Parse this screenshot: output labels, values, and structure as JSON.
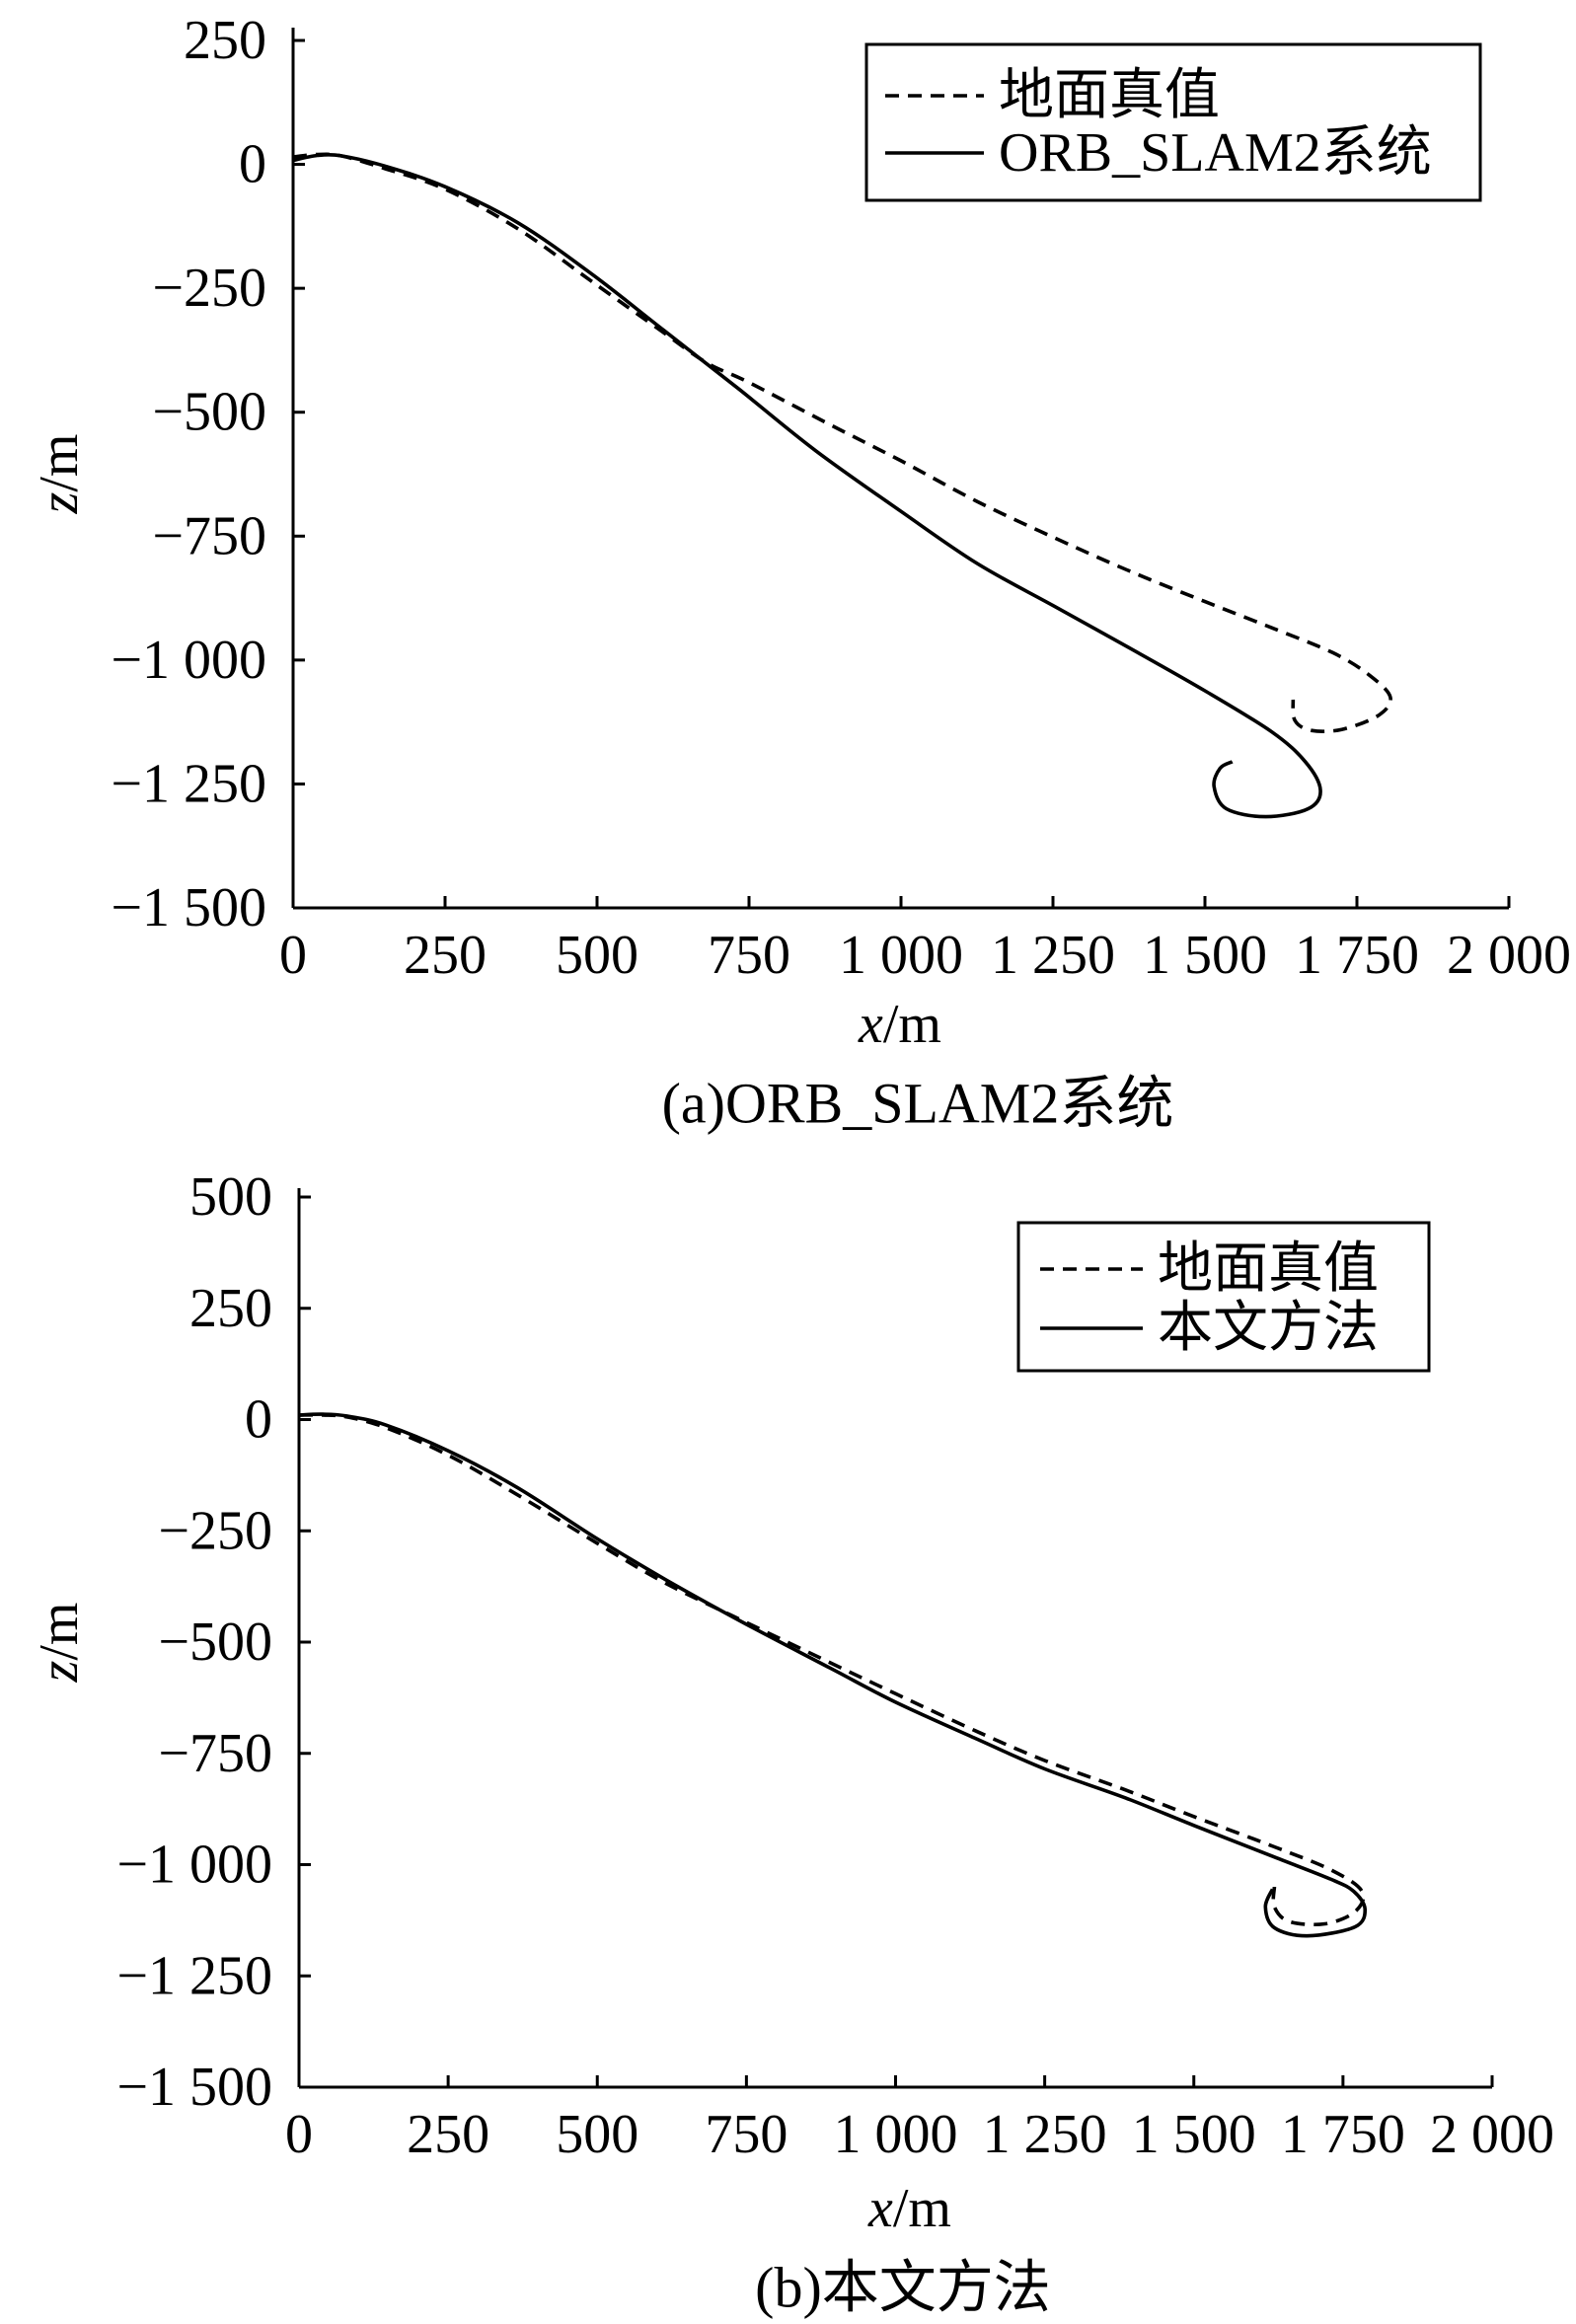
{
  "chart_data": [
    {
      "type": "line",
      "caption": "(a)ORB_SLAM2系统",
      "xlabel": "x/m",
      "ylabel": "z/m",
      "xlim": [
        0,
        2000
      ],
      "ylim": [
        -1500,
        250
      ],
      "xticks": [
        0,
        250,
        500,
        750,
        1000,
        1250,
        1500,
        1750,
        2000
      ],
      "xtick_labels": [
        "0",
        "250",
        "500",
        "750",
        "1 000",
        "1 250",
        "1 500",
        "1 750",
        "2 000"
      ],
      "yticks": [
        250,
        0,
        -250,
        -500,
        -750,
        -1000,
        -1250,
        -1500
      ],
      "ytick_labels": [
        "250",
        "0",
        "−250",
        "−500",
        "−750",
        "−1 000",
        "−1 250",
        "−1 500"
      ],
      "grid": false,
      "legend": "top-right",
      "series": [
        {
          "name": "地面真值",
          "style": "dashed",
          "color": "#000000",
          "points": [
            [
              0,
              15
            ],
            [
              40,
              20
            ],
            [
              80,
              17
            ],
            [
              150,
              -8
            ],
            [
              250,
              -50
            ],
            [
              370,
              -130
            ],
            [
              490,
              -235
            ],
            [
              610,
              -340
            ],
            [
              680,
              -400
            ],
            [
              750,
              -440
            ],
            [
              880,
              -523
            ],
            [
              1000,
              -598
            ],
            [
              1125,
              -680
            ],
            [
              1250,
              -752
            ],
            [
              1375,
              -820
            ],
            [
              1500,
              -882
            ],
            [
              1610,
              -935
            ],
            [
              1710,
              -985
            ],
            [
              1770,
              -1030
            ],
            [
              1805,
              -1075
            ],
            [
              1785,
              -1112
            ],
            [
              1725,
              -1140
            ],
            [
              1675,
              -1142
            ],
            [
              1648,
              -1122
            ],
            [
              1645,
              -1080
            ]
          ]
        },
        {
          "name": "ORB_SLAM2系统",
          "style": "solid",
          "color": "#000000",
          "points": [
            [
              0,
              8
            ],
            [
              40,
              18
            ],
            [
              80,
              17
            ],
            [
              150,
              -3
            ],
            [
              250,
              -45
            ],
            [
              370,
              -118
            ],
            [
              490,
              -220
            ],
            [
              610,
              -335
            ],
            [
              735,
              -455
            ],
            [
              860,
              -578
            ],
            [
              1000,
              -700
            ],
            [
              1125,
              -805
            ],
            [
              1250,
              -890
            ],
            [
              1375,
              -975
            ],
            [
              1500,
              -1062
            ],
            [
              1610,
              -1145
            ],
            [
              1665,
              -1205
            ],
            [
              1690,
              -1262
            ],
            [
              1670,
              -1300
            ],
            [
              1600,
              -1316
            ],
            [
              1535,
              -1300
            ],
            [
              1515,
              -1255
            ],
            [
              1525,
              -1218
            ],
            [
              1545,
              -1205
            ]
          ]
        }
      ]
    },
    {
      "type": "line",
      "caption": "(b)本文方法",
      "xlabel": "x/m",
      "ylabel": "z/m",
      "xlim": [
        0,
        2000
      ],
      "ylim": [
        -1500,
        500
      ],
      "xticks": [
        0,
        250,
        500,
        750,
        1000,
        1250,
        1500,
        1750,
        2000
      ],
      "xtick_labels": [
        "0",
        "250",
        "500",
        "750",
        "1 000",
        "1 250",
        "1 500",
        "1 750",
        "2 000"
      ],
      "yticks": [
        500,
        250,
        0,
        -250,
        -500,
        -750,
        -1000,
        -1250,
        -1500
      ],
      "ytick_labels": [
        "500",
        "250",
        "0",
        "−250",
        "−500",
        "−750",
        "−1 000",
        "−1 250",
        "−1 500"
      ],
      "grid": false,
      "legend": "top-right",
      "series": [
        {
          "name": "地面真值",
          "style": "dashed",
          "color": "#000000",
          "points": [
            [
              0,
              10
            ],
            [
              40,
              10
            ],
            [
              80,
              6
            ],
            [
              145,
              -18
            ],
            [
              250,
              -80
            ],
            [
              365,
              -168
            ],
            [
              500,
              -278
            ],
            [
              615,
              -368
            ],
            [
              750,
              -456
            ],
            [
              890,
              -546
            ],
            [
              1000,
              -616
            ],
            [
              1135,
              -700
            ],
            [
              1250,
              -766
            ],
            [
              1385,
              -832
            ],
            [
              1500,
              -892
            ],
            [
              1635,
              -960
            ],
            [
              1730,
              -1012
            ],
            [
              1782,
              -1060
            ],
            [
              1770,
              -1106
            ],
            [
              1720,
              -1133
            ],
            [
              1660,
              -1128
            ],
            [
              1635,
              -1095
            ],
            [
              1635,
              -1050
            ]
          ]
        },
        {
          "name": "本文方法",
          "style": "solid",
          "color": "#000000",
          "points": [
            [
              0,
              10
            ],
            [
              40,
              12
            ],
            [
              80,
              8
            ],
            [
              145,
              -12
            ],
            [
              250,
              -70
            ],
            [
              365,
              -152
            ],
            [
              500,
              -268
            ],
            [
              615,
              -360
            ],
            [
              750,
              -460
            ],
            [
              890,
              -558
            ],
            [
              1000,
              -635
            ],
            [
              1135,
              -717
            ],
            [
              1250,
              -785
            ],
            [
              1385,
              -850
            ],
            [
              1500,
              -912
            ],
            [
              1635,
              -983
            ],
            [
              1730,
              -1033
            ],
            [
              1768,
              -1060
            ],
            [
              1787,
              -1100
            ],
            [
              1770,
              -1140
            ],
            [
              1690,
              -1160
            ],
            [
              1635,
              -1142
            ],
            [
              1620,
              -1095
            ],
            [
              1632,
              -1055
            ]
          ]
        }
      ]
    }
  ]
}
